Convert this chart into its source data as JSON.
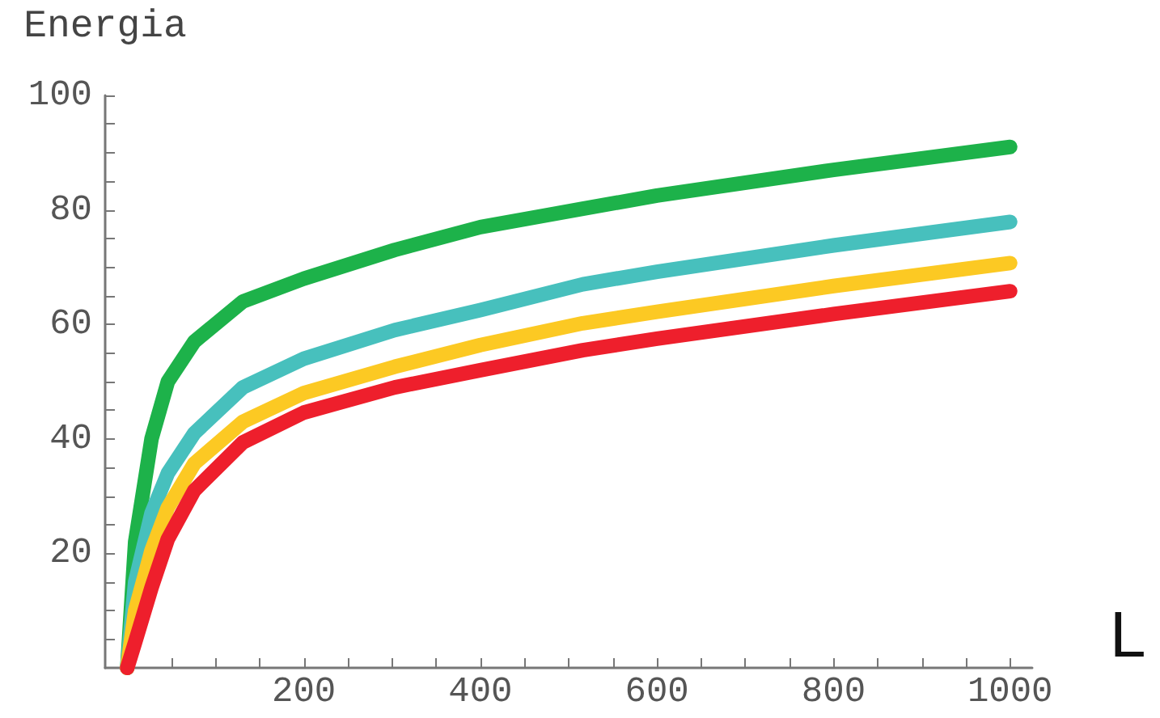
{
  "chart_data": {
    "type": "line",
    "ylabel": "Energia",
    "xlabel": "L",
    "marker": "none",
    "x": [
      0,
      9,
      27.5,
      46,
      76,
      131,
      200,
      303,
      400,
      516,
      600,
      800,
      1000
    ],
    "series": [
      {
        "color": "#1db24a",
        "values": [
          0,
          22,
          40,
          50,
          57,
          64,
          68,
          73,
          77,
          80.2,
          82.5,
          87,
          91
        ]
      },
      {
        "color": "#47c0bd",
        "values": [
          0,
          15,
          27,
          34,
          41,
          49,
          54,
          59,
          62.5,
          67,
          69.2,
          73.8,
          77.9
        ]
      },
      {
        "color": "#fcc923",
        "values": [
          0,
          10,
          20.5,
          28,
          35.7,
          43,
          48,
          52.6,
          56.4,
          60.2,
          62.2,
          66.7,
          70.7
        ]
      },
      {
        "color": "#ee1f2c",
        "values": [
          0,
          4.5,
          14,
          22.5,
          31,
          39.4,
          44.6,
          49,
          52,
          55.5,
          57.5,
          61.8,
          65.8
        ]
      }
    ],
    "xlim": [
      -25,
      1025
    ],
    "xticks": [
      {
        "value": 50,
        "label": null
      },
      {
        "value": 100,
        "label": null
      },
      {
        "value": 150,
        "label": null
      },
      200,
      {
        "value": 250,
        "label": null
      },
      {
        "value": 300,
        "label": null
      },
      {
        "value": 350,
        "label": null
      },
      400,
      {
        "value": 450,
        "label": null
      },
      {
        "value": 500,
        "label": null
      },
      {
        "value": 550,
        "label": null
      },
      600,
      {
        "value": 650,
        "label": null
      },
      {
        "value": 700,
        "label": null
      },
      {
        "value": 750,
        "label": null
      },
      800,
      {
        "value": 850,
        "label": null
      },
      {
        "value": 900,
        "label": null
      },
      {
        "value": 950,
        "label": null
      },
      1000
    ],
    "ylim": [
      0,
      100
    ],
    "yticks": [
      {
        "value": 5,
        "label": null
      },
      {
        "value": 10,
        "label": null
      },
      {
        "value": 15,
        "label": null
      },
      20,
      {
        "value": 25,
        "label": null
      },
      {
        "value": 30,
        "label": null
      },
      {
        "value": 35,
        "label": null
      },
      40,
      {
        "value": 45,
        "label": null
      },
      {
        "value": 50,
        "label": null
      },
      {
        "value": 55,
        "label": null
      },
      60,
      {
        "value": 65,
        "label": null
      },
      {
        "value": 70,
        "label": null
      },
      {
        "value": 75,
        "label": null
      },
      80,
      {
        "value": 85,
        "label": null
      },
      {
        "value": 90,
        "label": null
      },
      {
        "value": 95,
        "label": null
      },
      100
    ]
  }
}
